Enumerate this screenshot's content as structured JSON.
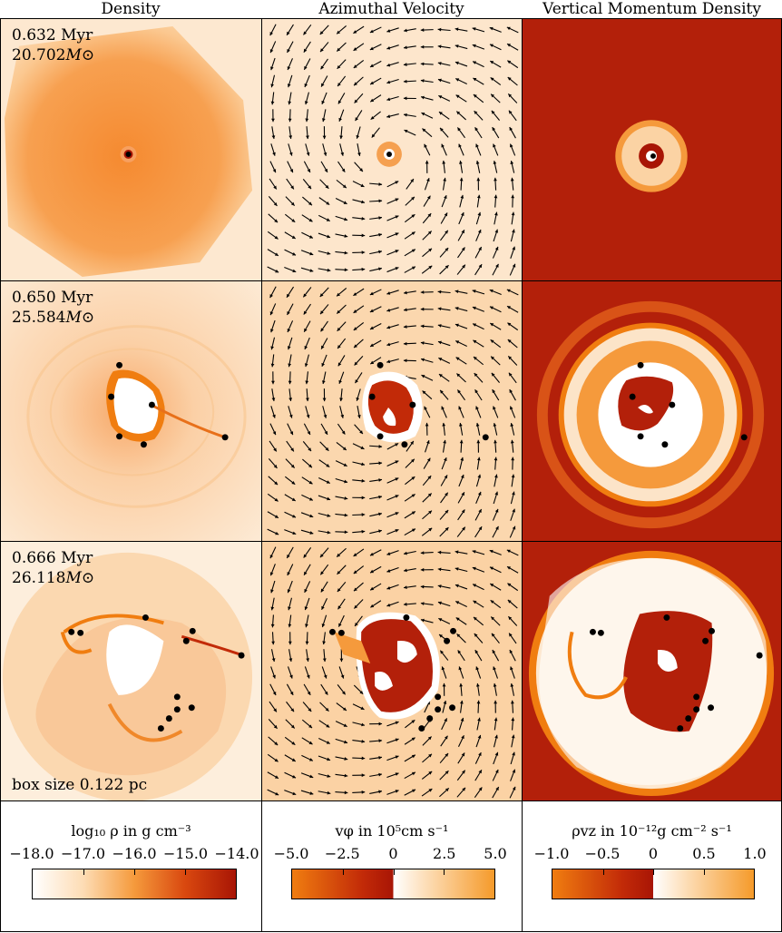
{
  "columns": {
    "density": "Density",
    "velocity": "Azimuthal Velocity",
    "momentum": "Vertical Momentum Density"
  },
  "rows": [
    {
      "time": "0.632 Myr",
      "mass": "20.702",
      "mass_unit": "M⊙"
    },
    {
      "time": "0.650 Myr",
      "mass": "25.584",
      "mass_unit": "M⊙"
    },
    {
      "time": "0.666 Myr",
      "mass": "26.118",
      "mass_unit": "M⊙"
    }
  ],
  "box_size": "box size 0.122 pc",
  "colorbars": {
    "density": {
      "title": "log₁₀ ρ in g cm⁻³",
      "ticks": [
        "−18.0",
        "−17.0",
        "−16.0",
        "−15.0",
        "−14.0"
      ],
      "colors": [
        "#ffffff",
        "#fddcb4",
        "#f59a3c",
        "#d9480f",
        "#a81505"
      ]
    },
    "velocity": {
      "title": "vφ in 10⁵cm s⁻¹",
      "ticks": [
        "−5.0",
        "−2.5",
        "0",
        "2.5",
        "5.0"
      ],
      "colors": [
        "#f07d10",
        "#c22a08",
        "#a81505",
        "#ffffff",
        "#fde0bc",
        "#f59a2a"
      ]
    },
    "momentum": {
      "title": "ρvz in 10⁻¹²g cm⁻² s⁻¹",
      "ticks": [
        "−1.0",
        "−0.5",
        "0",
        "0.5",
        "1.0"
      ],
      "colors": [
        "#f07d10",
        "#c22a08",
        "#a81505",
        "#ffffff",
        "#fde0bc",
        "#f59a2a"
      ]
    }
  }
}
